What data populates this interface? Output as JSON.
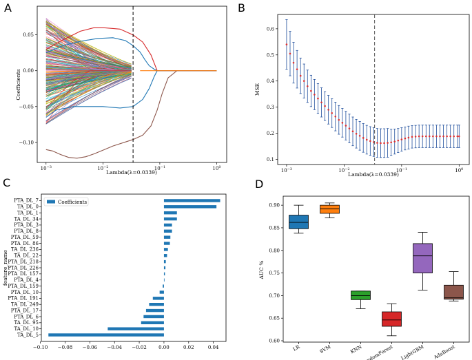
{
  "panel_labels": [
    "A",
    "B",
    "C",
    "D"
  ],
  "chart_data": [
    {
      "id": "A",
      "type": "line",
      "title": "",
      "xlabel": "Lambda(λ=0.0339)",
      "ylabel": "Coefficients",
      "xscale": "log",
      "xlim": [
        0.0007,
        1.5
      ],
      "ylim": [
        -0.128,
        0.09
      ],
      "xticks": [
        {
          "v": 0.001,
          "base": "10",
          "exp": "−3"
        },
        {
          "v": 0.01,
          "base": "10",
          "exp": "−2"
        },
        {
          "v": 0.1,
          "base": "10",
          "exp": "−1"
        },
        {
          "v": 1,
          "base": "10",
          "exp": "0"
        }
      ],
      "yticks": [
        {
          "v": 0.05,
          "label": "0.05"
        },
        {
          "v": 0.0,
          "label": "0.00"
        },
        {
          "v": -0.05,
          "label": "−0.05"
        },
        {
          "v": -0.1,
          "label": "−0.10"
        }
      ],
      "vline": 0.0339,
      "named_paths": [
        {
          "color": "#8c564b",
          "x": [
            0.001,
            0.0013,
            0.0018,
            0.0025,
            0.0035,
            0.005,
            0.007,
            0.01,
            0.015,
            0.0339,
            0.05,
            0.07,
            0.09,
            0.11,
            0.14,
            0.2,
            1.0
          ],
          "y": [
            -0.11,
            -0.112,
            -0.117,
            -0.121,
            -0.122,
            -0.12,
            -0.116,
            -0.111,
            -0.105,
            -0.096,
            -0.09,
            -0.077,
            -0.055,
            -0.032,
            -0.01,
            0.0,
            0.0
          ]
        },
        {
          "color": "#1f77b4",
          "x": [
            0.001,
            0.0015,
            0.003,
            0.006,
            0.01,
            0.02,
            0.0339,
            0.05,
            0.065,
            0.08,
            0.09,
            1.0
          ],
          "y": [
            -0.065,
            -0.055,
            -0.05,
            -0.05,
            -0.05,
            -0.052,
            -0.05,
            -0.04,
            -0.025,
            -0.008,
            0.0,
            0.0
          ]
        },
        {
          "color": "#d62728",
          "x": [
            0.001,
            0.002,
            0.004,
            0.007,
            0.01,
            0.02,
            0.0339,
            0.05,
            0.07,
            0.09,
            1.0
          ],
          "y": [
            0.03,
            0.043,
            0.055,
            0.06,
            0.06,
            0.058,
            0.05,
            0.04,
            0.022,
            0.0,
            0.0
          ]
        },
        {
          "color": "#1f77b4",
          "x": [
            0.001,
            0.002,
            0.004,
            0.008,
            0.015,
            0.025,
            0.0339,
            0.045,
            0.055,
            0.065,
            0.08,
            0.09,
            1.0
          ],
          "y": [
            0.025,
            0.035,
            0.041,
            0.045,
            0.046,
            0.042,
            0.035,
            0.026,
            0.015,
            0.007,
            0.002,
            0.0,
            0.0
          ]
        },
        {
          "color": "#ff7f0e",
          "x": [
            0.045,
            0.06,
            0.07,
            0.08,
            0.09,
            1.0
          ],
          "y": [
            0.0,
            0.0,
            0.0,
            0.0,
            0.0,
            0.0
          ]
        }
      ]
    },
    {
      "id": "B",
      "type": "scatter",
      "title": "",
      "xlabel": "Lambda(λ=0.0339)",
      "ylabel": "MSE",
      "xscale": "log",
      "xlim": [
        0.0007,
        1.5
      ],
      "ylim": [
        0.08,
        0.655
      ],
      "xticks": [
        {
          "v": 0.001,
          "base": "10",
          "exp": "−3"
        },
        {
          "v": 0.01,
          "base": "10",
          "exp": "−2"
        },
        {
          "v": 0.1,
          "base": "10",
          "exp": "−1"
        },
        {
          "v": 1,
          "base": "10",
          "exp": "0"
        }
      ],
      "yticks": [
        {
          "v": 0.1,
          "label": "0.1"
        },
        {
          "v": 0.2,
          "label": "0.2"
        },
        {
          "v": 0.3,
          "label": "0.3"
        },
        {
          "v": 0.4,
          "label": "0.4"
        },
        {
          "v": 0.5,
          "label": "0.5"
        },
        {
          "v": 0.6,
          "label": "0.6"
        }
      ],
      "vline": 0.0339,
      "x": [
        0.001,
        0.00115,
        0.00132,
        0.00152,
        0.00175,
        0.00201,
        0.00231,
        0.00266,
        0.00305,
        0.00351,
        0.00404,
        0.00464,
        0.00534,
        0.00614,
        0.00706,
        0.00811,
        0.00933,
        0.01072,
        0.01233,
        0.01417,
        0.0163,
        0.01874,
        0.02154,
        0.02477,
        0.02848,
        0.03275,
        0.03765,
        0.04329,
        0.04977,
        0.05722,
        0.06579,
        0.07565,
        0.08697,
        0.1,
        0.115,
        0.132,
        0.152,
        0.175,
        0.201,
        0.231,
        0.266,
        0.305,
        0.351,
        0.404,
        0.464,
        0.534,
        0.614,
        0.706,
        0.811,
        0.933,
        1.0
      ],
      "y": [
        0.54,
        0.505,
        0.47,
        0.445,
        0.42,
        0.4,
        0.38,
        0.362,
        0.348,
        0.333,
        0.318,
        0.304,
        0.29,
        0.277,
        0.264,
        0.251,
        0.24,
        0.229,
        0.218,
        0.207,
        0.198,
        0.19,
        0.182,
        0.175,
        0.17,
        0.166,
        0.163,
        0.162,
        0.162,
        0.163,
        0.165,
        0.168,
        0.172,
        0.176,
        0.18,
        0.183,
        0.186,
        0.187,
        0.188,
        0.188,
        0.188,
        0.188,
        0.188,
        0.188,
        0.188,
        0.188,
        0.188,
        0.188,
        0.188,
        0.188,
        0.188
      ],
      "err": [
        0.095,
        0.085,
        0.078,
        0.072,
        0.068,
        0.065,
        0.062,
        0.06,
        0.058,
        0.057,
        0.056,
        0.055,
        0.055,
        0.055,
        0.055,
        0.055,
        0.055,
        0.055,
        0.055,
        0.055,
        0.055,
        0.055,
        0.055,
        0.055,
        0.055,
        0.055,
        0.055,
        0.055,
        0.055,
        0.055,
        0.05,
        0.048,
        0.046,
        0.045,
        0.044,
        0.044,
        0.043,
        0.043,
        0.043,
        0.043,
        0.043,
        0.043,
        0.043,
        0.043,
        0.043,
        0.043,
        0.043,
        0.043,
        0.043,
        0.043,
        0.043
      ]
    },
    {
      "id": "C",
      "type": "bar",
      "orientation": "horizontal",
      "title": "",
      "xlabel": "",
      "ylabel": "feature_name",
      "legend": "Coefficients",
      "legend_position": "top-left",
      "xlim": [
        -0.1,
        0.05
      ],
      "xticks": [
        {
          "v": -0.1,
          "label": "−0.10"
        },
        {
          "v": -0.08,
          "label": "−0.08"
        },
        {
          "v": -0.06,
          "label": "−0.06"
        },
        {
          "v": -0.04,
          "label": "−0.04"
        },
        {
          "v": -0.02,
          "label": "−0.02"
        },
        {
          "v": 0.0,
          "label": "0.00"
        },
        {
          "v": 0.02,
          "label": "0.02"
        },
        {
          "v": 0.04,
          "label": "0.04"
        }
      ],
      "categories": [
        "PTA_DL_7",
        "TA_DL_0",
        "TA_DL_1",
        "TA_DL_34",
        "PTA_DL_3",
        "PTA_DL_8",
        "PTA_DL_59",
        "PTA_DL_86",
        "TA_DL_236",
        "TA_DL_22",
        "PTA_DL_218",
        "PTA_DL_226",
        "PTA_DL_157",
        "PTA_DL_4",
        "PTA_DL_159",
        "PTA_DL_10",
        "PTA_DL_191",
        "TA_DL_249",
        "PTA_DL_17",
        "PTA_DL_6",
        "TA_DL_95",
        "TA_DL_10",
        "TA_DL_5"
      ],
      "values": [
        0.0455,
        0.0425,
        0.0105,
        0.0105,
        0.0065,
        0.0065,
        0.0052,
        0.0048,
        0.0032,
        0.0025,
        0.0015,
        0.0012,
        0.0008,
        0.0003,
        -0.001,
        -0.0035,
        -0.009,
        -0.012,
        -0.0145,
        -0.0165,
        -0.0185,
        -0.0455,
        -0.0935
      ],
      "color": "#1f77b4"
    },
    {
      "id": "D",
      "type": "box",
      "title": "",
      "xlabel": "",
      "ylabel": "AUC %",
      "ylim": [
        0.597,
        0.92
      ],
      "yticks": [
        {
          "v": 0.6,
          "label": "0.60"
        },
        {
          "v": 0.65,
          "label": "0.65"
        },
        {
          "v": 0.7,
          "label": "0.70"
        },
        {
          "v": 0.75,
          "label": "0.75"
        },
        {
          "v": 0.8,
          "label": "0.80"
        },
        {
          "v": 0.85,
          "label": "0.85"
        },
        {
          "v": 0.9,
          "label": "0.90"
        }
      ],
      "series": [
        {
          "name": "LR",
          "color": "#1f77b4",
          "whislo": 0.838,
          "q1": 0.848,
          "med": 0.862,
          "q3": 0.878,
          "whishi": 0.9
        },
        {
          "name": "SVM",
          "color": "#ff7f0e",
          "whislo": 0.872,
          "q1": 0.882,
          "med": 0.892,
          "q3": 0.9,
          "whishi": 0.905
        },
        {
          "name": "KNN",
          "color": "#2ca02c",
          "whislo": 0.671,
          "q1": 0.691,
          "med": 0.7,
          "q3": 0.71,
          "whishi": 0.71
        },
        {
          "name": "RandomForest",
          "color": "#d62728",
          "whislo": 0.611,
          "q1": 0.632,
          "med": 0.646,
          "q3": 0.664,
          "whishi": 0.682
        },
        {
          "name": "LightGBM",
          "color": "#9467bd",
          "whislo": 0.712,
          "q1": 0.75,
          "med": 0.788,
          "q3": 0.815,
          "whishi": 0.84
        },
        {
          "name": "AdaBoost",
          "color": "#8c564b",
          "whislo": 0.688,
          "q1": 0.692,
          "med": 0.695,
          "q3": 0.723,
          "whishi": 0.753
        }
      ]
    }
  ]
}
